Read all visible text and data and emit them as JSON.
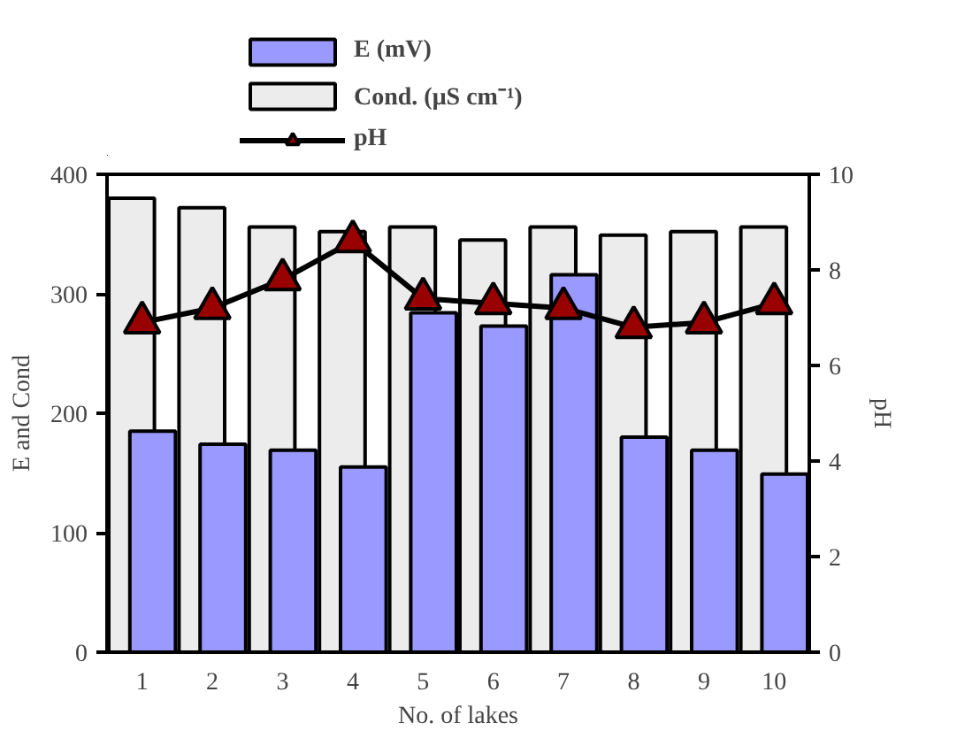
{
  "chart_data": {
    "type": "bar",
    "xlabel": "No. of lakes",
    "ylabel": "E and Cond",
    "y2label": "pH",
    "categories": [
      "1",
      "2",
      "3",
      "4",
      "5",
      "6",
      "7",
      "8",
      "9",
      "10"
    ],
    "series": [
      {
        "name": "E (mV)",
        "color": "#9999ff",
        "values": [
          185,
          174,
          169,
          155,
          284,
          273,
          316,
          180,
          169,
          149
        ]
      },
      {
        "name": "Cond. (μS cm⁻¹)",
        "color": "#ececec",
        "values": [
          380,
          372,
          356,
          352,
          356,
          345,
          356,
          349,
          352,
          356
        ]
      },
      {
        "name": "pH",
        "type": "line",
        "axis": "y2",
        "color": "#990000",
        "marker": "triangle",
        "values": [
          6.9,
          7.2,
          7.8,
          8.6,
          7.4,
          7.3,
          7.2,
          6.8,
          6.9,
          7.3
        ]
      }
    ],
    "ylim": [
      0,
      400
    ],
    "yticks": [
      0,
      100,
      200,
      300,
      400
    ],
    "y2lim": [
      0,
      10
    ],
    "y2ticks": [
      0,
      2,
      4,
      6,
      8,
      10
    ],
    "grid": false,
    "legend": "top left"
  }
}
